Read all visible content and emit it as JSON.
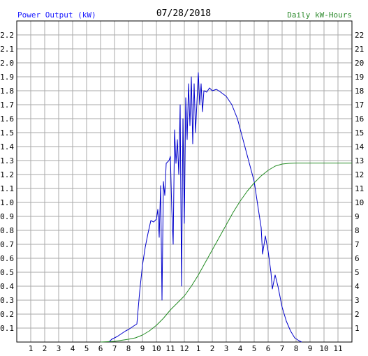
{
  "chart_data": {
    "type": "line",
    "title": "07/28/2018",
    "y_left_label": "Power Output (kW)",
    "y_right_label": "Daily kW-Hours",
    "x_ticks": [
      "1",
      "2",
      "3",
      "4",
      "5",
      "6",
      "7",
      "8",
      "9",
      "10",
      "11",
      "12",
      "1",
      "2",
      "3",
      "4",
      "5",
      "6",
      "7",
      "8",
      "9",
      "10",
      "11"
    ],
    "x_range": [
      0,
      24
    ],
    "y_left_ticks": [
      "0.1",
      "0.2",
      "0.3",
      "0.4",
      "0.5",
      "0.6",
      "0.7",
      "0.8",
      "0.9",
      "1.0",
      "1.1",
      "1.2",
      "1.3",
      "1.4",
      "1.5",
      "1.6",
      "1.7",
      "1.8",
      "1.9",
      "2.0",
      "2.1",
      "2.2"
    ],
    "y_left_range": [
      0,
      2.3
    ],
    "y_right_ticks": [
      "1",
      "2",
      "3",
      "4",
      "5",
      "6",
      "7",
      "8",
      "9",
      "10",
      "11",
      "12",
      "13",
      "14",
      "15",
      "16",
      "17",
      "18",
      "19",
      "20",
      "21",
      "22"
    ],
    "y_right_range": [
      0,
      23
    ],
    "grid": true,
    "colors": {
      "power": "#0000cc",
      "energy": "#228b22",
      "grid": "#aaaaaa",
      "frame": "#000000"
    },
    "series": [
      {
        "axis": "left",
        "color": "#0000cc",
        "points": [
          [
            6.6,
            0
          ],
          [
            6.8,
            0.02
          ],
          [
            7,
            0.03
          ],
          [
            7.2,
            0.04
          ],
          [
            7.5,
            0.06
          ],
          [
            7.8,
            0.08
          ],
          [
            8,
            0.09
          ],
          [
            8.3,
            0.11
          ],
          [
            8.6,
            0.13
          ],
          [
            8.8,
            0.36
          ],
          [
            9,
            0.55
          ],
          [
            9.2,
            0.68
          ],
          [
            9.4,
            0.78
          ],
          [
            9.6,
            0.87
          ],
          [
            9.8,
            0.86
          ],
          [
            10,
            0.88
          ],
          [
            10.1,
            0.95
          ],
          [
            10.2,
            0.75
          ],
          [
            10.3,
            1.12
          ],
          [
            10.4,
            0.3
          ],
          [
            10.5,
            1.15
          ],
          [
            10.6,
            1.05
          ],
          [
            10.7,
            1.28
          ],
          [
            10.9,
            1.3
          ],
          [
            11,
            1.33
          ],
          [
            11.1,
            0.95
          ],
          [
            11.2,
            0.7
          ],
          [
            11.3,
            1.52
          ],
          [
            11.4,
            1.28
          ],
          [
            11.5,
            1.45
          ],
          [
            11.6,
            1.2
          ],
          [
            11.7,
            1.7
          ],
          [
            11.8,
            0.4
          ],
          [
            11.9,
            1.6
          ],
          [
            12,
            0.85
          ],
          [
            12.1,
            1.75
          ],
          [
            12.2,
            1.45
          ],
          [
            12.3,
            1.85
          ],
          [
            12.4,
            1.55
          ],
          [
            12.5,
            1.9
          ],
          [
            12.6,
            1.42
          ],
          [
            12.7,
            1.85
          ],
          [
            12.8,
            1.5
          ],
          [
            13,
            1.93
          ],
          [
            13.1,
            1.7
          ],
          [
            13.2,
            1.85
          ],
          [
            13.3,
            1.65
          ],
          [
            13.4,
            1.8
          ],
          [
            13.6,
            1.79
          ],
          [
            13.8,
            1.82
          ],
          [
            14,
            1.8
          ],
          [
            14.3,
            1.81
          ],
          [
            14.6,
            1.79
          ],
          [
            15,
            1.76
          ],
          [
            15.4,
            1.7
          ],
          [
            15.8,
            1.6
          ],
          [
            16.2,
            1.45
          ],
          [
            16.6,
            1.3
          ],
          [
            17,
            1.15
          ],
          [
            17.3,
            0.95
          ],
          [
            17.5,
            0.82
          ],
          [
            17.6,
            0.63
          ],
          [
            17.8,
            0.76
          ],
          [
            18,
            0.65
          ],
          [
            18.2,
            0.5
          ],
          [
            18.3,
            0.38
          ],
          [
            18.5,
            0.48
          ],
          [
            18.7,
            0.4
          ],
          [
            19,
            0.25
          ],
          [
            19.3,
            0.15
          ],
          [
            19.6,
            0.08
          ],
          [
            19.9,
            0.03
          ],
          [
            20.2,
            0.01
          ],
          [
            20.4,
            0
          ]
        ]
      },
      {
        "axis": "right",
        "color": "#228b22",
        "points": [
          [
            6.0,
            0
          ],
          [
            7.0,
            0.05
          ],
          [
            8.0,
            0.2
          ],
          [
            8.5,
            0.3
          ],
          [
            9.0,
            0.5
          ],
          [
            9.5,
            0.8
          ],
          [
            10,
            1.2
          ],
          [
            10.5,
            1.7
          ],
          [
            11,
            2.3
          ],
          [
            11.5,
            2.8
          ],
          [
            12,
            3.3
          ],
          [
            12.5,
            4.0
          ],
          [
            13,
            4.8
          ],
          [
            13.5,
            5.7
          ],
          [
            14,
            6.6
          ],
          [
            14.5,
            7.5
          ],
          [
            15,
            8.4
          ],
          [
            15.5,
            9.3
          ],
          [
            16,
            10.1
          ],
          [
            16.5,
            10.8
          ],
          [
            17,
            11.4
          ],
          [
            17.5,
            11.9
          ],
          [
            18,
            12.3
          ],
          [
            18.5,
            12.6
          ],
          [
            19,
            12.75
          ],
          [
            19.5,
            12.8
          ],
          [
            20,
            12.82
          ],
          [
            24,
            12.82
          ]
        ]
      }
    ]
  }
}
